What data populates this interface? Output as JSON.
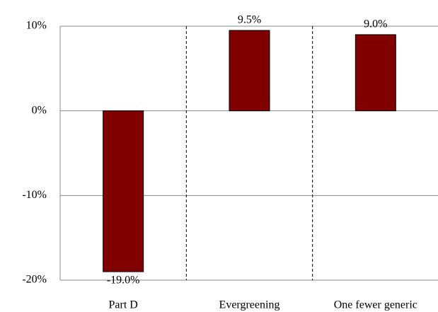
{
  "chart_data": {
    "type": "bar",
    "categories": [
      "Part D",
      "Evergreening",
      "One fewer generic"
    ],
    "values": [
      -19.0,
      9.5,
      9.0
    ],
    "value_labels": [
      "-19.0%",
      "9.5%",
      "9.0%"
    ],
    "color": "#800000",
    "ylim": [
      -20,
      10
    ],
    "yticks": [
      {
        "value": -20,
        "label": "-20%"
      },
      {
        "value": -10,
        "label": "-10%"
      },
      {
        "value": 0,
        "label": "0%"
      },
      {
        "value": 10,
        "label": "10%"
      }
    ],
    "grid": true
  }
}
